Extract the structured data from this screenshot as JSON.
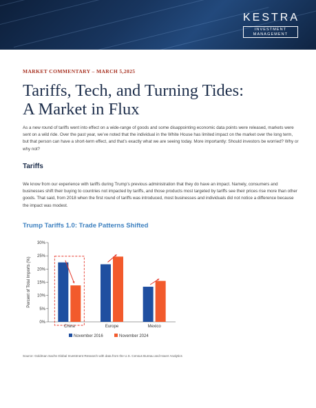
{
  "brand": {
    "name": "KESTRA",
    "subtitle_line1": "INVESTMENT",
    "subtitle_line2": "MANAGEMENT"
  },
  "article": {
    "meta": "MARKET COMMENTARY – MARCH 5,2025",
    "title_line1": "Tariffs, Tech, and Turning Tides:",
    "title_line2": "A Market in Flux",
    "intro": "As a new round of tariffs went into effect on a wide-range of goods and some disappointing economic data points were released, markets were sent on a wild ride. Over the past year, we’ve noted that the individual in the White House has limited impact on the market over the long term, but that person can have a short-term effect, and that’s exactly what we are seeing today. More importantly: Should investors be worried? Why or why not?",
    "section_heading": "Tariffs",
    "section_body": "We know from our experience with tariffs during Trump’s previous administration that they do have an impact. Namely, consumers and businesses shift their buying to countries not impacted by tariffs, and those products most targeted by tariffs see their prices rise more than other goods. That said, from 2018 when the first round of tariffs was introduced, most businesses and individuals did not notice a difference because the impact was modest.",
    "chart_title": "Trump Tariffs 1.0: Trade Patterns Shifted",
    "source": "Source: Goldman Sachs Global Investment Research with data from the U.S. Census Bureau and Haver Analytics"
  },
  "chart_data": {
    "type": "bar",
    "categories": [
      "China",
      "Europe",
      "Mexico"
    ],
    "series": [
      {
        "name": "November 2016",
        "values": [
          22.5,
          21.8,
          13.3
        ],
        "color": "#1f4fa0"
      },
      {
        "name": "November 2024",
        "values": [
          13.8,
          24.7,
          15.5
        ],
        "color": "#f25a2c"
      }
    ],
    "ylabel": "Percent of Total Imports (%)",
    "xlabel": "",
    "ylim": [
      0,
      30
    ],
    "yticks": [
      0,
      5,
      10,
      15,
      20,
      25,
      30
    ],
    "ytick_labels": [
      "0%",
      "5%",
      "10%",
      "15%",
      "20%",
      "25%",
      "30%"
    ],
    "highlighted_category": "China",
    "highlight_color": "#e5372a",
    "grid": false,
    "legend": "bottom"
  }
}
